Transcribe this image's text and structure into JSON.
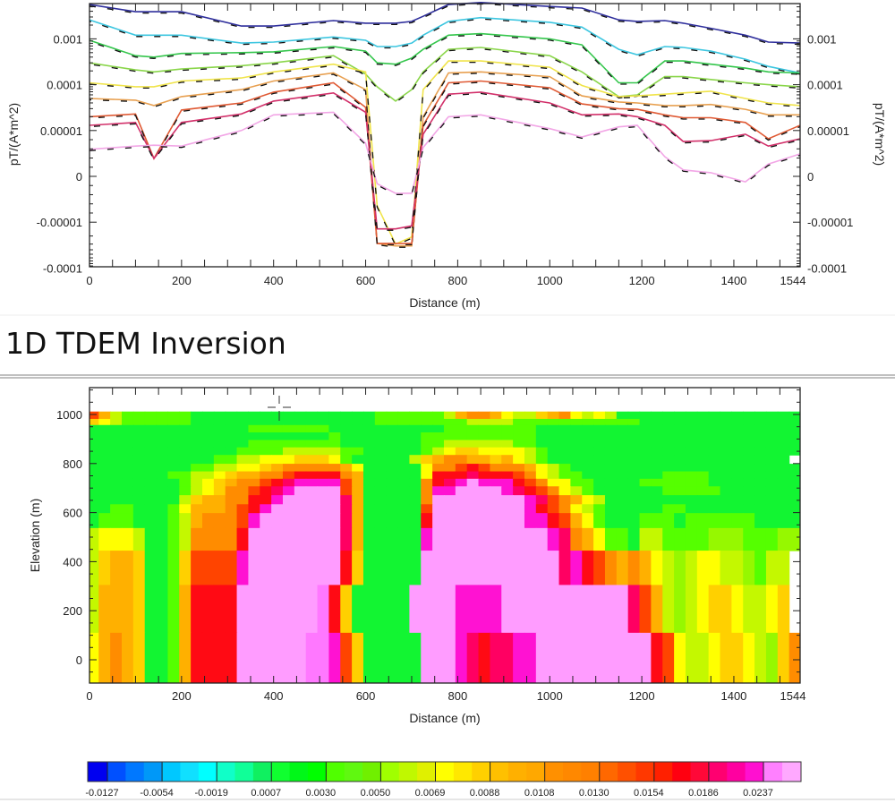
{
  "heading": "1D TDEM Inversion",
  "chart_data": [
    {
      "type": "line",
      "x_axis": {
        "label": "Distance (m)",
        "range": [
          0,
          1544
        ],
        "ticks": [
          0,
          200,
          400,
          600,
          800,
          1000,
          1200,
          1400,
          1544
        ],
        "tick_labels": [
          "0",
          "200",
          "400",
          "600",
          "800",
          "1000",
          "1200",
          "1400",
          "1544"
        ]
      },
      "y_axis": {
        "label": "pT/(A*m^2)",
        "scale": "symmetric-log",
        "range": [
          -0.0001,
          0.0059
        ],
        "ticks": [
          0.001,
          0.0001,
          1e-05,
          0,
          -1e-05,
          -0.0001
        ],
        "tick_labels": [
          "0.001",
          "0.0001",
          "0.00001",
          "0",
          "-0.00001",
          "-0.0001"
        ]
      },
      "right_axis": {
        "label": "pT/(A*m^2)",
        "tick_labels": [
          "0.001",
          "0.0001",
          "0.00001",
          "0",
          "-0.00001",
          "-0.0001"
        ]
      },
      "grid": false,
      "observed_style": "black dashed",
      "x": [
        0,
        100,
        140,
        200,
        330,
        400,
        530,
        600,
        625,
        665,
        700,
        725,
        780,
        850,
        1000,
        1070,
        1150,
        1190,
        1250,
        1290,
        1350,
        1425,
        1475,
        1544
      ],
      "series": [
        {
          "color": "#2e2e9c",
          "values": [
            0.0056,
            0.0039,
            0.0039,
            0.0039,
            0.0019,
            0.0019,
            0.0025,
            0.0022,
            0.0022,
            0.0022,
            0.0024,
            0.0031,
            0.0056,
            0.0062,
            0.0051,
            0.0047,
            0.0026,
            0.0024,
            0.0025,
            0.0022,
            0.0017,
            0.0012,
            0.00085,
            0.00081
          ]
        },
        {
          "color": "#3cc6e0",
          "values": [
            0.0026,
            0.0012,
            0.0012,
            0.0012,
            0.00081,
            0.00085,
            0.0011,
            0.00093,
            0.00068,
            0.00068,
            0.00081,
            0.0012,
            0.0024,
            0.0029,
            0.0023,
            0.0018,
            0.00059,
            0.00045,
            0.00068,
            0.00065,
            0.00054,
            0.00036,
            0.00025,
            0.00018
          ]
        },
        {
          "color": "#34c64c",
          "values": [
            0.00093,
            0.00043,
            0.0004,
            0.00048,
            0.0005,
            0.00052,
            0.00068,
            0.00054,
            0.0003,
            0.00028,
            0.00038,
            0.00059,
            0.0012,
            0.0013,
            0.001,
            0.00074,
            0.00011,
            0.00011,
            0.00033,
            0.00033,
            0.00028,
            0.00023,
            0.00019,
            0.00018
          ]
        },
        {
          "color": "#8ad64a",
          "values": [
            0.0003,
            0.00021,
            0.00019,
            0.00022,
            0.00026,
            0.0003,
            0.00043,
            0.00017,
            9e-05,
            4.4e-05,
            7.8e-05,
            0.00019,
            0.00059,
            0.00065,
            0.00043,
            0.00019,
            5.5e-05,
            6e-05,
            0.00015,
            0.00015,
            0.00013,
            0.00011,
            0.0001,
            9e-05
          ]
        },
        {
          "color": "#f0e44a",
          "values": [
            0.00011,
            9e-05,
            9e-05,
            0.00012,
            0.00014,
            0.00019,
            0.00028,
            0.00019,
            -6.4e-06,
            -3e-05,
            -2.1e-05,
            7.8e-05,
            0.00033,
            0.00033,
            0.00024,
            9.6e-05,
            5.5e-05,
            5.7e-05,
            6.2e-05,
            6.6e-05,
            7.2e-05,
            5e-05,
            4e-05,
            3.5e-05
          ]
        },
        {
          "color": "#e8a050",
          "values": [
            5e-05,
            4.6e-05,
            3.5e-05,
            5.5e-05,
            7.8e-05,
            0.00012,
            0.00018,
            7.8e-05,
            -2.9e-05,
            -3.3e-05,
            -3.3e-05,
            2e-05,
            0.00018,
            0.00019,
            0.00015,
            5.7e-05,
            4.2e-05,
            4e-05,
            3.5e-05,
            3.5e-05,
            3.7e-05,
            2.9e-05,
            2.2e-05,
            2.2e-05
          ]
        },
        {
          "color": "#e05a34",
          "values": [
            2e-05,
            2.3e-05,
            3.9e-06,
            2.8e-05,
            4e-05,
            6.9e-05,
            0.00011,
            3.2e-05,
            -2.9e-05,
            -2.9e-05,
            -2.9e-05,
            1.3e-05,
            0.00011,
            0.00012,
            8.6e-05,
            3.8e-05,
            3e-05,
            2.9e-05,
            2.2e-05,
            1.9e-05,
            1.9e-05,
            1.5e-05,
            8.2e-06,
            1.3e-05
          ]
        },
        {
          "color": "#d2306a",
          "values": [
            1.3e-05,
            1.5e-05,
            3.9e-06,
            1.5e-05,
            2.3e-05,
            4.4e-05,
            6.6e-05,
            2.5e-05,
            -1.4e-05,
            -1.4e-05,
            -1.2e-05,
            9.2e-06,
            6.2e-05,
            6.9e-05,
            4e-05,
            2.2e-05,
            2.3e-05,
            2e-05,
            1.3e-05,
            7.6e-06,
            7.8e-06,
            9.2e-06,
            6.6e-06,
            8.2e-06
          ]
        },
        {
          "color": "#f2a6e6",
          "values": [
            5.9e-06,
            6.6e-06,
            6.8e-06,
            6.6e-06,
            1e-05,
            2.2e-05,
            2.5e-05,
            7.2e-06,
            -1.6e-06,
            -3.7e-06,
            -3.7e-06,
            6.3e-06,
            2e-05,
            2.2e-05,
            1.1e-05,
            8.6e-06,
            1.2e-05,
            1.3e-05,
            4.3e-06,
            1.4e-06,
            8e-07,
            -1.2e-06,
            2.7e-06,
            4.9e-06
          ]
        }
      ]
    },
    {
      "type": "heatmap",
      "x_axis": {
        "label": "Distance (m)",
        "range": [
          0,
          1544
        ],
        "ticks": [
          0,
          200,
          400,
          600,
          800,
          1000,
          1200,
          1400,
          1544
        ],
        "tick_labels": [
          "0",
          "200",
          "400",
          "600",
          "800",
          "1000",
          "1200",
          "1400",
          "1544"
        ]
      },
      "y_axis": {
        "label": "Elevation (m)",
        "range": [
          -95,
          1110
        ],
        "ticks": [
          0,
          200,
          400,
          600,
          800,
          1000
        ],
        "tick_labels": [
          "0",
          "200",
          "400",
          "600",
          "800",
          "1000"
        ]
      },
      "columns": {
        "first_edge_m": -5,
        "width_m": 25,
        "count": 62
      },
      "layer_tops_m": [
        1012,
        982,
        957,
        927,
        896,
        866,
        835,
        799,
        768,
        738,
        707,
        671,
        634,
        598,
        537,
        445,
        305,
        110
      ],
      "layer_bottom_m": -98,
      "cell_codes": {
        "p": {
          "value": 0.025,
          "color": "#ff9cff"
        },
        "P": {
          "value": 0.024,
          "color": "#ff78ff"
        },
        "m": {
          "value": 0.021,
          "color": "#ff12d2"
        },
        "c": {
          "value": 0.019,
          "color": "#ff0062"
        },
        "R": {
          "value": 0.017,
          "color": "#ff0a14"
        },
        "r": {
          "value": 0.014,
          "color": "#ff4400"
        },
        "a": {
          "value": 0.0118,
          "color": "#ff8c00"
        },
        "O": {
          "value": 0.0098,
          "color": "#ffb000"
        },
        "o": {
          "value": 0.0085,
          "color": "#ffd000"
        },
        "Y": {
          "value": 0.0072,
          "color": "#ffff00"
        },
        "y": {
          "value": 0.0063,
          "color": "#c4f800"
        },
        "L": {
          "value": 0.0057,
          "color": "#96f800"
        },
        "l": {
          "value": 0.0052,
          "color": "#55ff00"
        },
        "G": {
          "value": 0.004,
          "color": "#12f532"
        }
      },
      "rows": [
        "rOyllllllGGGGGGGGGGGGGGGGllllllyOaaOYyyoOaYyYyGGGGGGGGGGGGGGGG",
        "oYyllllllGGGGGGGGGGGGGGGGllllllllyyyylllllllllllGGGGGGGGGGGGGGGG",
        "GGGGGGGGGGGGGGlllllllGGGGGGGGGGllllllllGGGGGGGGGGGGGGGGGGGGGGG",
        "GGGGGGGGGGGGGGGGGGGGGlGGGGGGGllllllllllGGGGGGGGGGGGGGGGGGGGGGG",
        "GGGGGGGGGGGGGGllllllllGGGGGGGllyyyyyyllGGGGGGGGGGGGGGGGGGGGGGG",
        "GGGGGGGGGGGGGllllyyyyyllGGGGGlyYooYYYYylGGGGGGGGGGGGGGGGGGGGGG",
        "GGGGGGGGGGGllyyYYYoooYlGGGGGyoOaaOOoOYylGGGGGGGGGGGGGGGGGGGGG",
        "GGGGGGGGGllyyYYoOaaaaaOYGGGGGYaarRraaaOYylGGGGGGGGGGGGGGGGGGGG",
        "GGGGGGGllyyYoOOaarRRRRaOGGGGGYRRRcRRRraYyllGGGGGGGllllGGGGGGGG",
        "GGGGGGGGlyYoOaarRcmmmmrOGGGGGaRcmpmmmRraYYllGGGGllllllGGGGGGGG",
        "GGGGGGGGlyYoaarRcmpppprOGGGGGammppppmcRraYylGGGGGGlllllGGGGGGG",
        "GGGGGGGGyoOOaaRRmpppppcOGGGGGappppppppmcraOYyGGGGGGGGGGGGGGGGG",
        "GGllGGGlYOOOarRmppppppcOGGGGGrppppppppmRraYylGGGGGllGGGGGGGGGG",
        "GlllGGGlyOaaarmpppppppcOGGGGGRppppppppmmRrOYlGGGlllGllllllGGGG",
        "yYYYyGGlyaaaaRppppppppcOGGGGGmppppppppppmcaOYllGyyllllLLLlllLL",
        "yoOOoGGlorrrrmppppppppRoGGGGGppppppppppppcmRraOaOYyLyYYyyLlyy",
        "yOOOoGGlORRRRpppppppPRoGGGGGppppmmmmpppppppppppcrOyLyYooYyyYo",
        "YOaOoGGlORRRRppppppPPmroGGGGGpppmcRccmmppppppppppRrYyyYooYyLoa"
      ],
      "colorbar": {
        "labels": [
          "-0.0127",
          "-0.0054",
          "-0.0019",
          "0.0007",
          "0.0030",
          "0.0050",
          "0.0069",
          "0.0088",
          "0.0108",
          "0.0130",
          "0.0154",
          "0.0186",
          "0.0237"
        ],
        "colors": [
          "#0000f0",
          "#0050ff",
          "#0078ff",
          "#0098f8",
          "#00c8ff",
          "#10e0ff",
          "#00ffff",
          "#10ffc8",
          "#10ff98",
          "#10f060",
          "#10ff30",
          "#00f818",
          "#00ff00",
          "#50ff00",
          "#60f810",
          "#70f000",
          "#a0ff00",
          "#c0f800",
          "#e0f000",
          "#ffff00",
          "#ffe800",
          "#ffd000",
          "#ffc000",
          "#ffb000",
          "#ffa800",
          "#ff9000",
          "#ff8800",
          "#ff8000",
          "#ff6800",
          "#ff5000",
          "#ff3800",
          "#ff2000",
          "#ff0010",
          "#ff0838",
          "#ff0070",
          "#ff00a0",
          "#ff10d0",
          "#ff80ff",
          "#ffa8ff"
        ]
      }
    }
  ]
}
